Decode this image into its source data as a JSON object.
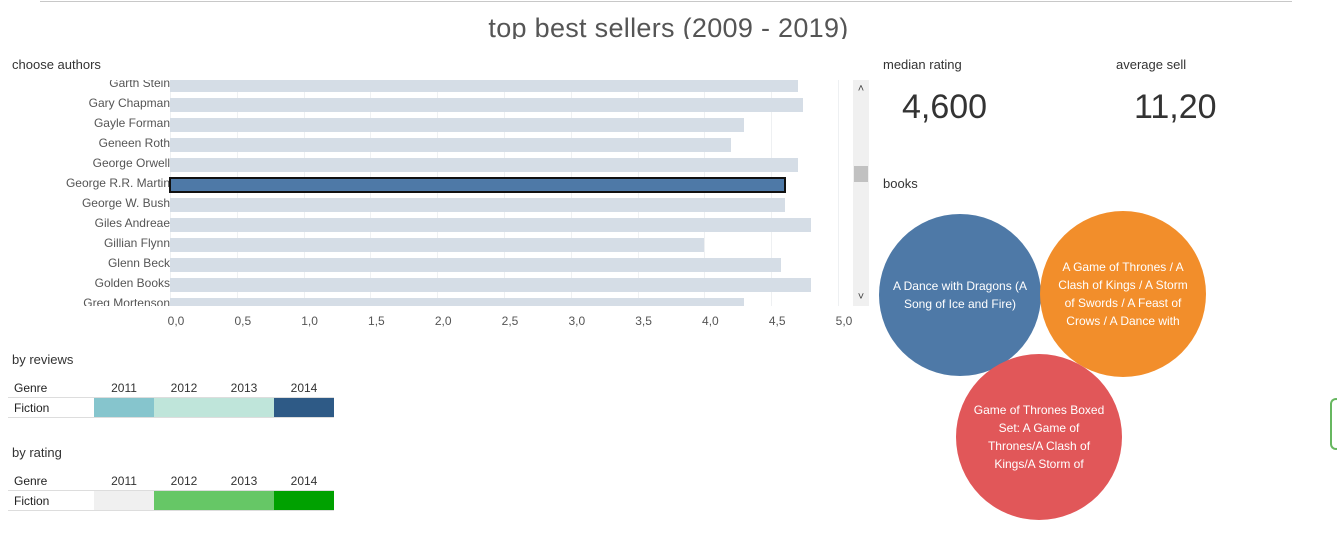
{
  "title": "top best sellers (2009 - 2019)",
  "authors_panel": {
    "label": "choose authors",
    "selected": "George R.R. Martin",
    "authors": [
      {
        "name": "Garth Stein",
        "rating": 4.7
      },
      {
        "name": "Gary Chapman",
        "rating": 4.74
      },
      {
        "name": "Gayle Forman",
        "rating": 4.3
      },
      {
        "name": "Geneen Roth",
        "rating": 4.2
      },
      {
        "name": "George Orwell",
        "rating": 4.7
      },
      {
        "name": "George R.R. Martin",
        "rating": 4.6
      },
      {
        "name": "George W. Bush",
        "rating": 4.6
      },
      {
        "name": "Giles Andreae",
        "rating": 4.8
      },
      {
        "name": "Gillian Flynn",
        "rating": 4.0
      },
      {
        "name": "Glenn Beck",
        "rating": 4.57
      },
      {
        "name": "Golden Books",
        "rating": 4.8
      },
      {
        "name": "Greg Mortenson",
        "rating": 4.3
      }
    ],
    "axis_ticks": [
      "0,0",
      "0,5",
      "1,0",
      "1,5",
      "2,0",
      "2,5",
      "3,0",
      "3,5",
      "4,0",
      "4,5",
      "5,0"
    ],
    "axis_max": 5.0
  },
  "kpis": {
    "median_label": "median rating",
    "median_value": "4,600",
    "avg_label": "average sell",
    "avg_value": "11,20"
  },
  "books_label": "books",
  "books": [
    {
      "title": "A Dance with Dragons (A Song of Ice and Fire)",
      "color": "#4e79a7"
    },
    {
      "title": "A Game of Thrones / A Clash of Kings / A Storm of Swords / A Feast of Crows / A Dance with",
      "color": "#f28e2b"
    },
    {
      "title": "Game of Thrones Boxed Set: A Game of Thrones/A Clash of Kings/A Storm of",
      "color": "#e15759"
    }
  ],
  "by_reviews": {
    "label": "by reviews",
    "header": [
      "Genre",
      "2011",
      "2012",
      "2013",
      "2014"
    ],
    "row_label": "Fiction",
    "colors": [
      "#86c5cd",
      "#bfe5da",
      "#bfe5da",
      "#2e5a86"
    ]
  },
  "by_rating": {
    "label": "by rating",
    "header": [
      "Genre",
      "2011",
      "2012",
      "2013",
      "2014"
    ],
    "row_label": "Fiction",
    "colors": [
      "#f0f0f0",
      "#66c766",
      "#66c766",
      "#00a100"
    ]
  }
}
